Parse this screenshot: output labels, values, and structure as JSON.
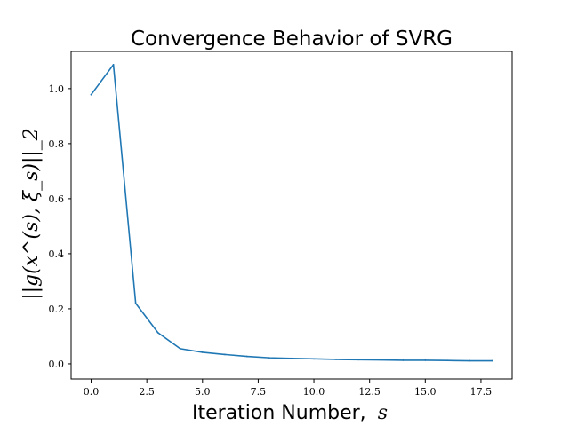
{
  "chart_data": {
    "type": "line",
    "title": "Convergence Behavior of SVRG",
    "xlabel": "Iteration Number,",
    "xlabel_math": "s",
    "ylabel": "||g(x^(s), ξ_s)||_2",
    "xlim": [
      -0.9,
      18.9
    ],
    "ylim": [
      -0.055,
      1.135
    ],
    "x_ticks": [
      0.0,
      2.5,
      5.0,
      7.5,
      10.0,
      12.5,
      15.0,
      17.5
    ],
    "x_tick_labels": [
      "0.0",
      "2.5",
      "5.0",
      "7.5",
      "10.0",
      "12.5",
      "15.0",
      "17.5"
    ],
    "y_ticks": [
      0.0,
      0.2,
      0.4,
      0.6,
      0.8,
      1.0
    ],
    "y_tick_labels": [
      "0.0",
      "0.2",
      "0.4",
      "0.6",
      "0.8",
      "1.0"
    ],
    "grid": false,
    "series": [
      {
        "color": "#1f77b4",
        "x": [
          0,
          1,
          2,
          3,
          4,
          5,
          6,
          7,
          8,
          9,
          10,
          11,
          12,
          13,
          14,
          15,
          16,
          17,
          18
        ],
        "y": [
          0.978,
          1.087,
          0.22,
          0.113,
          0.055,
          0.042,
          0.034,
          0.027,
          0.022,
          0.02,
          0.018,
          0.016,
          0.015,
          0.014,
          0.013,
          0.013,
          0.012,
          0.011,
          0.011
        ]
      }
    ]
  }
}
